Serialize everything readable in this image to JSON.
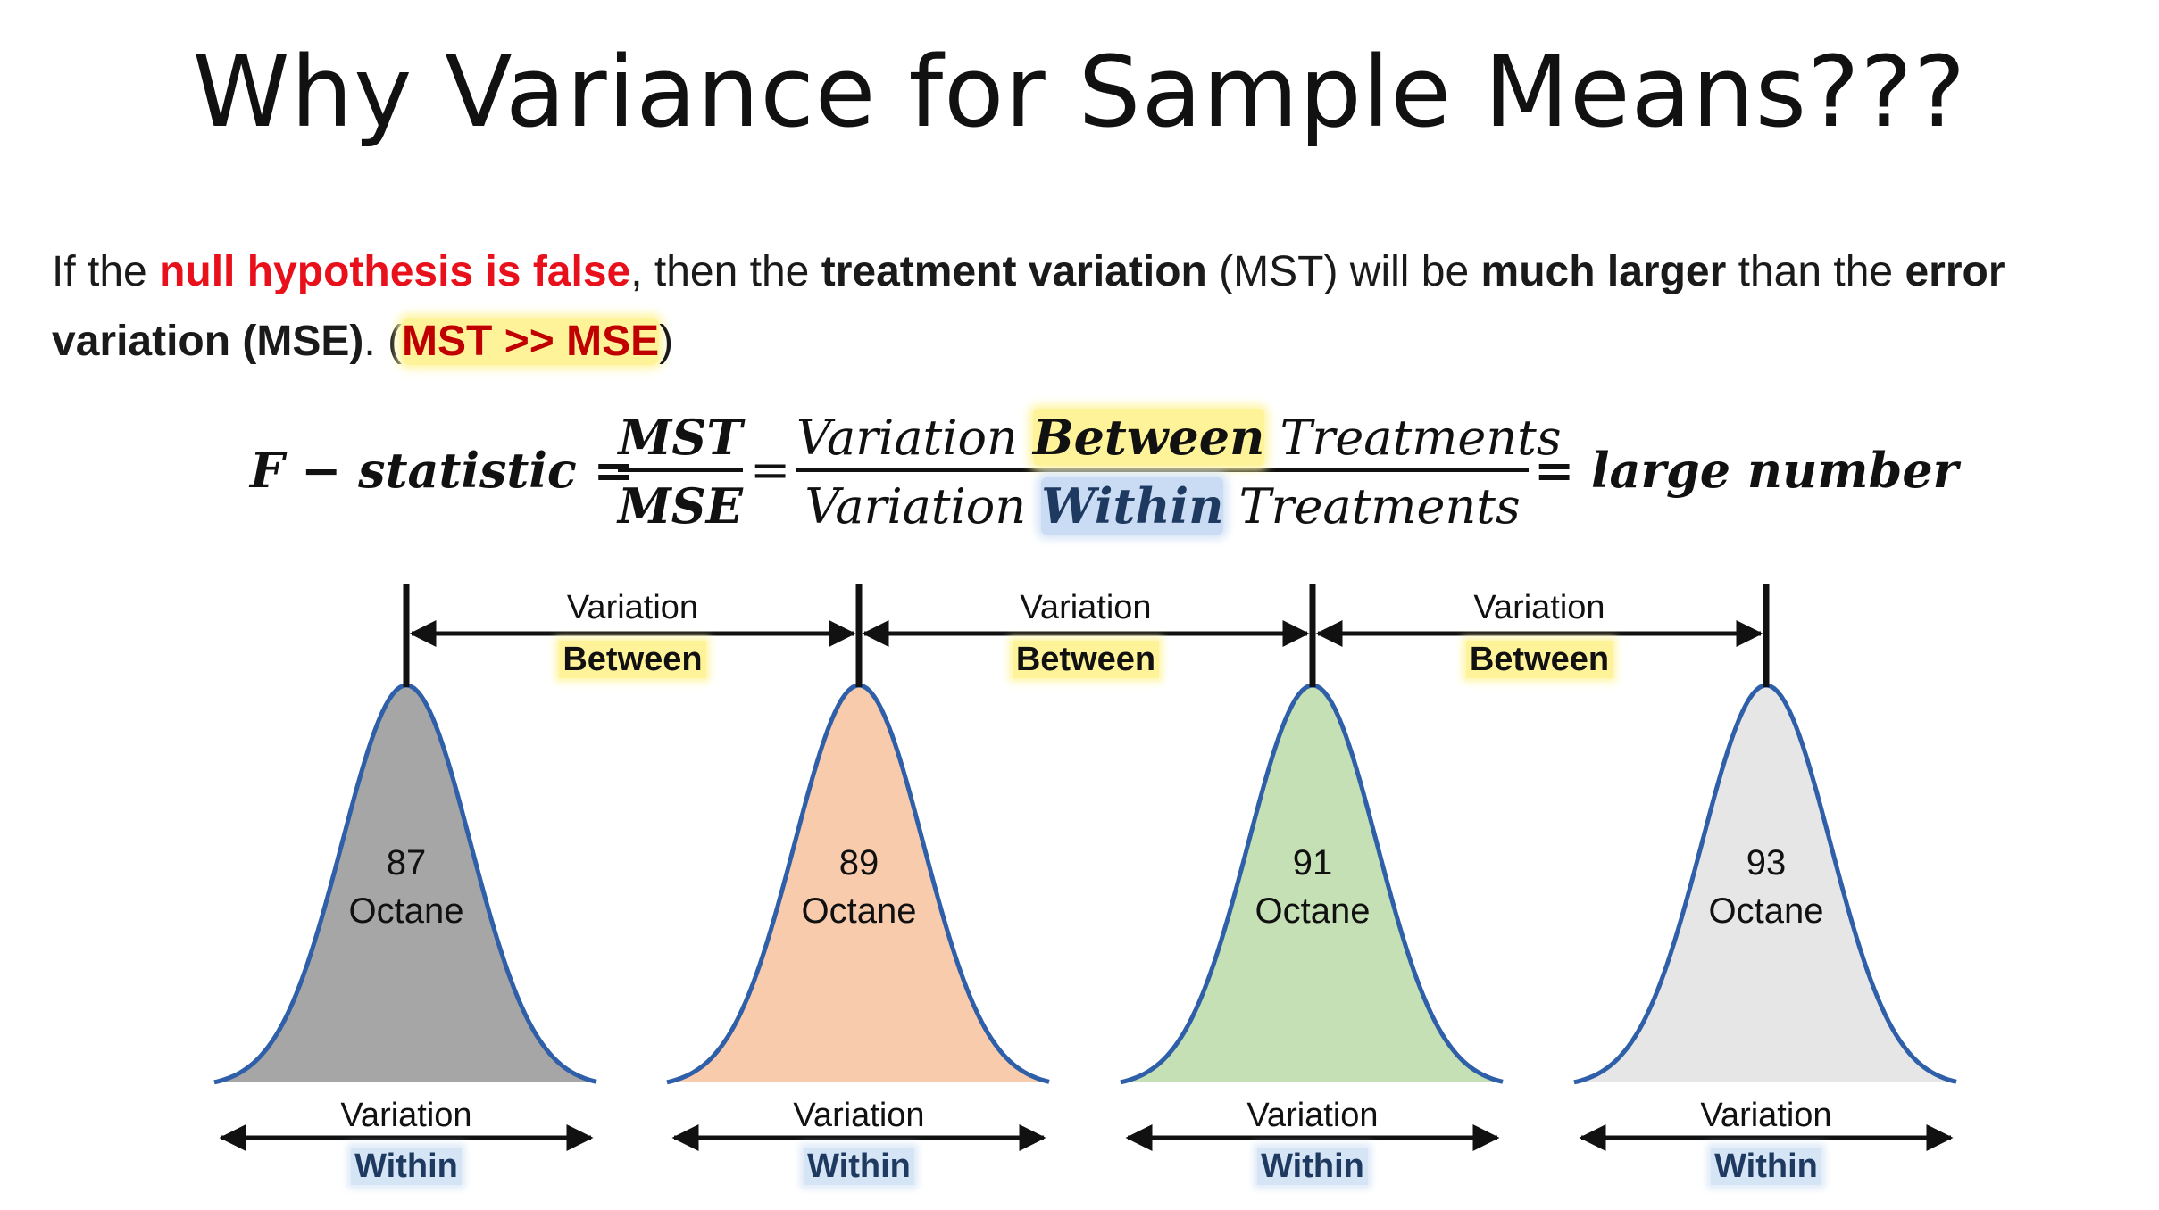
{
  "slide": {
    "title": "Why Variance for Sample Means???",
    "paragraph": {
      "p1": "If the ",
      "p2": "null hypothesis is false",
      "p3": ", then the ",
      "p4": "treatment variation",
      "p5": " (MST) will be ",
      "p6": "much larger",
      "p7": " than the ",
      "p8": "error variation (MSE)",
      "p9": ". (",
      "p10": "MST >> MSE",
      "p11": ")"
    },
    "formula": {
      "lhs": "F − statistic =",
      "frac1_num": "MST",
      "frac1_den": "MSE",
      "eq2": "=",
      "num_a": "Variation ",
      "num_b": "Between",
      "num_c": " Treatments",
      "den_a": "Variation ",
      "den_b": "Within",
      "den_c": " Treatments",
      "rhs": "= large number"
    },
    "curves": [
      {
        "value": "87",
        "unit": "Octane",
        "color": "#a6a6a6",
        "within_label": "Variation",
        "within_word": "Within"
      },
      {
        "value": "89",
        "unit": "Octane",
        "color": "#f8cbad",
        "within_label": "Variation",
        "within_word": "Within"
      },
      {
        "value": "91",
        "unit": "Octane",
        "color": "#c5e0b4",
        "within_label": "Variation",
        "within_word": "Within"
      },
      {
        "value": "93",
        "unit": "Octane",
        "color": "#e7e6e6",
        "within_label": "Variation",
        "within_word": "Within"
      }
    ],
    "between": [
      {
        "label": "Variation",
        "word": "Between"
      },
      {
        "label": "Variation",
        "word": "Between"
      },
      {
        "label": "Variation",
        "word": "Between"
      }
    ],
    "colors": {
      "curve_outline": "#2e5fa8",
      "emphasis_red": "#e8101a",
      "highlight_yellow": "#fff39a",
      "highlight_blue": "#c9dcf3"
    }
  }
}
